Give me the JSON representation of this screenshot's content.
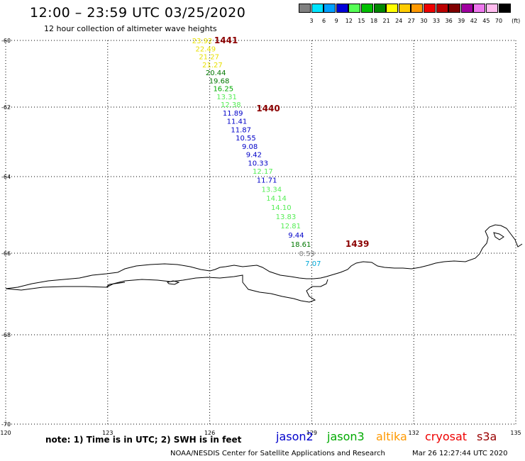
{
  "header": {
    "title": "12:00 – 23:59 UTC 03/25/2020",
    "subtitle": "12 hour collection of altimeter wave heights"
  },
  "legend": {
    "unit": "(ft)",
    "items": [
      {
        "color": "#808080",
        "label": "3"
      },
      {
        "color": "#00e5ff",
        "label": "6"
      },
      {
        "color": "#00a0ff",
        "label": "9"
      },
      {
        "color": "#0000d8",
        "label": "12"
      },
      {
        "color": "#55ff55",
        "label": "15"
      },
      {
        "color": "#00c000",
        "label": "18"
      },
      {
        "color": "#008800",
        "label": "21"
      },
      {
        "color": "#ffff00",
        "label": "24"
      },
      {
        "color": "#ffcc00",
        "label": "27"
      },
      {
        "color": "#ff9900",
        "label": "30"
      },
      {
        "color": "#ee0000",
        "label": "33"
      },
      {
        "color": "#bb0000",
        "label": "36"
      },
      {
        "color": "#800000",
        "label": "39"
      },
      {
        "color": "#a000a0",
        "label": "42"
      },
      {
        "color": "#ee77ee",
        "label": "45"
      },
      {
        "color": "#ffbbee",
        "label": "70"
      },
      {
        "color": "#000000",
        "label": ""
      }
    ]
  },
  "axes": {
    "lat_labels": [
      "-60",
      "-62",
      "-64",
      "-66",
      "-68",
      "-70"
    ],
    "lon_labels": [
      "120",
      "123",
      "126",
      "129",
      "132",
      "135"
    ]
  },
  "chart_data": {
    "type": "scatter",
    "title": "12:00 – 23:59 UTC 03/25/2020",
    "subtitle": "12 hour collection of altimeter wave heights",
    "xlabel": "",
    "ylabel": "",
    "xlim": [
      120,
      135
    ],
    "ylim": [
      -70,
      -60
    ],
    "x_ticks": [
      120,
      123,
      126,
      129,
      132,
      135
    ],
    "y_ticks": [
      -60,
      -62,
      -64,
      -66,
      -68,
      -70
    ],
    "unit": "ft",
    "points": [
      {
        "lon": 125.78,
        "lat": -60.0,
        "value": "23.92",
        "color": "#e8e000"
      },
      {
        "lon": 125.88,
        "lat": -60.24,
        "value": "22.49",
        "color": "#e8e000"
      },
      {
        "lon": 125.98,
        "lat": -60.48,
        "value": "21.27",
        "color": "#e8e000"
      },
      {
        "lon": 126.08,
        "lat": -60.72,
        "value": "21.27",
        "color": "#e8e000"
      },
      {
        "lon": 126.18,
        "lat": -60.96,
        "value": "20.44",
        "color": "#007700"
      },
      {
        "lon": 126.28,
        "lat": -61.2,
        "value": "19.68",
        "color": "#007700"
      },
      {
        "lon": 126.4,
        "lat": -61.44,
        "value": "16.25",
        "color": "#00aa00"
      },
      {
        "lon": 126.5,
        "lat": -61.68,
        "value": "13.31",
        "color": "#55ee55"
      },
      {
        "lon": 126.62,
        "lat": -61.92,
        "value": "12.38",
        "color": "#55ee55"
      },
      {
        "lon": 126.68,
        "lat": -62.16,
        "value": "11.89",
        "color": "#0000c8"
      },
      {
        "lon": 126.8,
        "lat": -62.4,
        "value": "11.41",
        "color": "#0000c8"
      },
      {
        "lon": 126.92,
        "lat": -62.64,
        "value": "11.87",
        "color": "#0000c8"
      },
      {
        "lon": 127.06,
        "lat": -62.88,
        "value": "10.55",
        "color": "#0000c8"
      },
      {
        "lon": 127.18,
        "lat": -63.12,
        "value": "9.08",
        "color": "#0000c8"
      },
      {
        "lon": 127.3,
        "lat": -63.36,
        "value": "9.42",
        "color": "#0000c8"
      },
      {
        "lon": 127.42,
        "lat": -63.6,
        "value": "10.33",
        "color": "#0000c8"
      },
      {
        "lon": 127.56,
        "lat": -63.84,
        "value": "12.17",
        "color": "#55ee55"
      },
      {
        "lon": 127.68,
        "lat": -64.08,
        "value": "11.71",
        "color": "#0000c8"
      },
      {
        "lon": 127.82,
        "lat": -64.32,
        "value": "13.34",
        "color": "#55ee55"
      },
      {
        "lon": 127.96,
        "lat": -64.56,
        "value": "14.14",
        "color": "#55ee55"
      },
      {
        "lon": 128.1,
        "lat": -64.8,
        "value": "14.10",
        "color": "#55ee55"
      },
      {
        "lon": 128.24,
        "lat": -65.04,
        "value": "13.83",
        "color": "#55ee55"
      },
      {
        "lon": 128.38,
        "lat": -65.28,
        "value": "12.81",
        "color": "#55ee55"
      },
      {
        "lon": 128.54,
        "lat": -65.52,
        "value": "9.44",
        "color": "#0000c8"
      },
      {
        "lon": 128.68,
        "lat": -65.76,
        "value": "18.61",
        "color": "#007700"
      },
      {
        "lon": 128.86,
        "lat": -66.0,
        "value": "0.59",
        "color": "#808080"
      },
      {
        "lon": 129.04,
        "lat": -66.24,
        "value": "7.07",
        "color": "#00a8d8"
      }
    ],
    "pass_labels": [
      {
        "lon": 126.48,
        "lat": -60.0,
        "text": "1441"
      },
      {
        "lon": 127.72,
        "lat": -62.04,
        "text": "1440"
      },
      {
        "lon": 130.34,
        "lat": -65.76,
        "text": "1439"
      }
    ]
  },
  "footer": {
    "note": "note: 1) Time is in UTC; 2) SWH is in feet",
    "satellites": [
      {
        "name": "jason2",
        "color": "#0000cc"
      },
      {
        "name": "jason3",
        "color": "#00aa00"
      },
      {
        "name": "altika",
        "color": "#ff9900"
      },
      {
        "name": "cryosat",
        "color": "#ee0000"
      },
      {
        "name": "s3a",
        "color": "#990000"
      }
    ],
    "credit": "NOAA/NESDIS Center for Satellite Applications and Research",
    "timestamp": "Mar 26 12:27:44 UTC 2020"
  },
  "colors": {
    "pass_label": "#8b0000",
    "grid": "#000000",
    "coast": "#000000"
  }
}
